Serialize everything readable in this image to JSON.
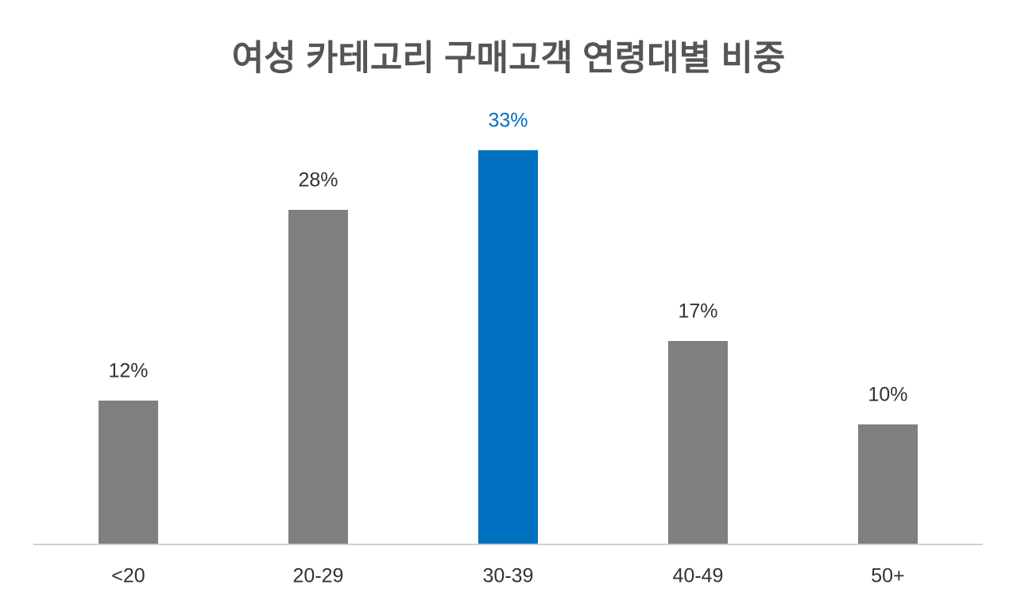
{
  "chart_data": {
    "type": "bar",
    "title": "여성 카테고리 구매고객 연령대별 비중",
    "categories": [
      "<20",
      "20-29",
      "30-39",
      "40-49",
      "50+"
    ],
    "values": [
      12,
      28,
      33,
      17,
      10
    ],
    "value_labels": [
      "12%",
      "28%",
      "33%",
      "17%",
      "10%"
    ],
    "colors": [
      "#7f7f7f",
      "#7f7f7f",
      "#0070c0",
      "#7f7f7f",
      "#7f7f7f"
    ],
    "label_colors": [
      "#333333",
      "#333333",
      "#0070c0",
      "#333333",
      "#333333"
    ]
  }
}
